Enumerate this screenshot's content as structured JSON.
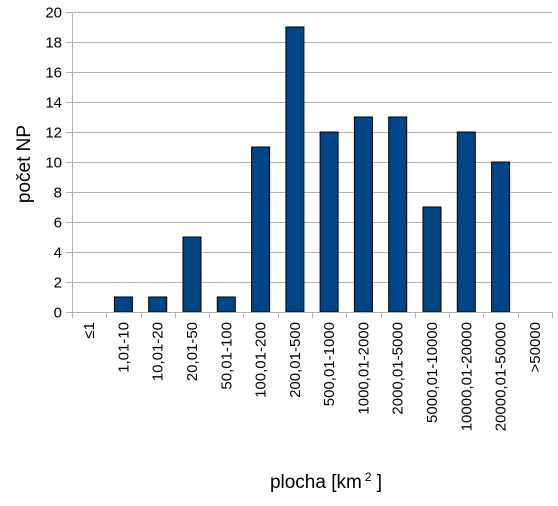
{
  "chart_data": {
    "type": "bar",
    "categories": [
      "≤1",
      "1,01-10",
      "10,01-20",
      "20,01-50",
      "50,01-100",
      "100,01-200",
      "200,01-500",
      "500,01-1000",
      "1000,01-2000",
      "2000,01-5000",
      "5000,01-10000",
      "10000,01-20000",
      "20000,01-50000",
      ">50000"
    ],
    "values": [
      0,
      1,
      1,
      5,
      1,
      11,
      19,
      12,
      13,
      13,
      7,
      12,
      10,
      0
    ],
    "ylim": [
      0,
      20
    ],
    "yticks": [
      0,
      2,
      4,
      6,
      8,
      10,
      12,
      14,
      16,
      18,
      20
    ],
    "ylabel": "počet NP",
    "xlabel": "plocha [km",
    "xlabel_sup": "2",
    "xlabel_suffix": " ]",
    "grid": true,
    "legend": "none"
  },
  "colors": {
    "bar_fill": "#004586",
    "bar_stroke": "#000000",
    "grid": "#b3b3b3",
    "axis": "#b3b3b3"
  }
}
